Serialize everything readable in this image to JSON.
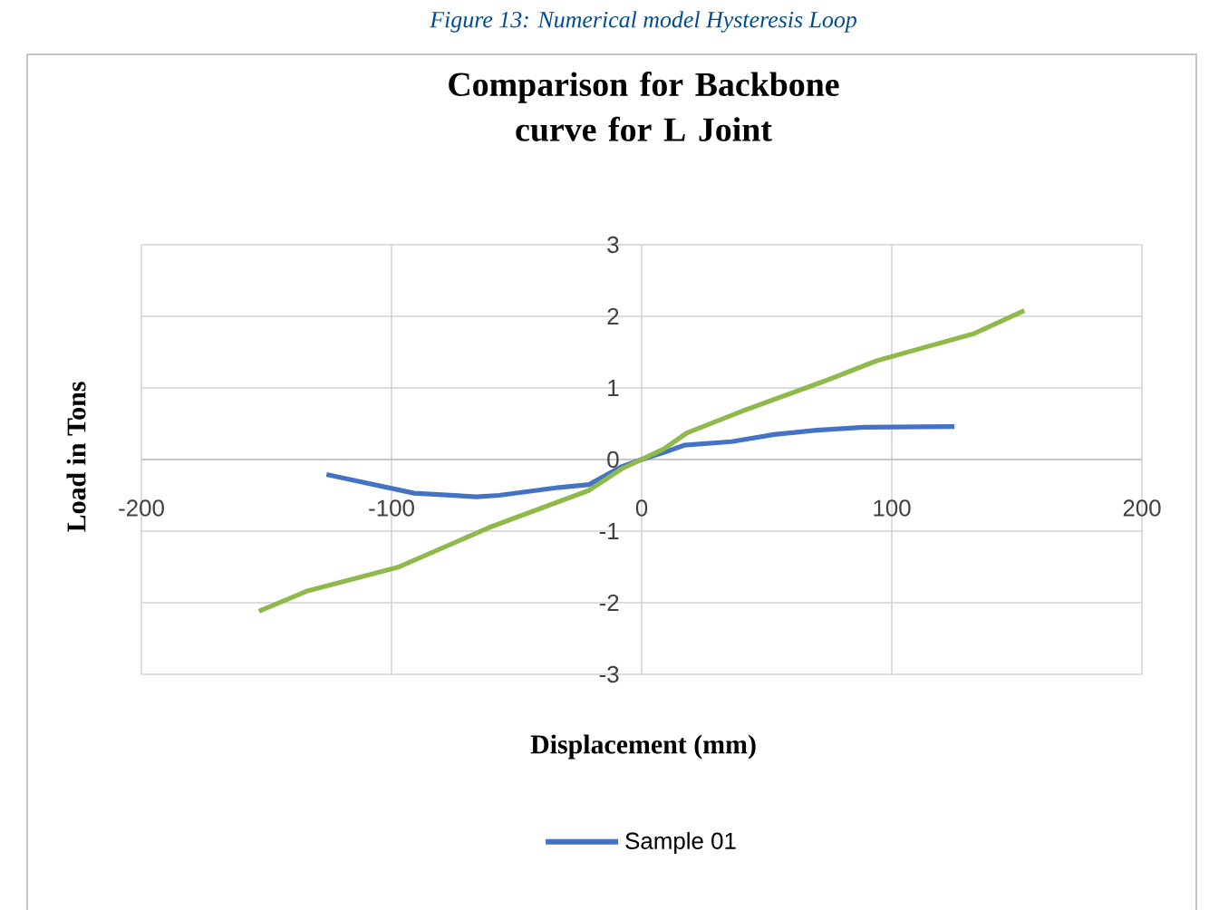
{
  "chart_data": {
    "type": "line",
    "title": "Comparison for Backbone curve for L Joint",
    "xlabel": "Displacement (mm)",
    "ylabel": "Load in Tons",
    "annotations": [
      "Figure 13: Numerical model Hysteresis Loop"
    ],
    "series": [
      {
        "name": "Sample 01",
        "color": "#4472c4",
        "x": [
          -126,
          -91,
          -66,
          -57,
          -33,
          -21,
          -8,
          0,
          9,
          17,
          36,
          53,
          70,
          89,
          125
        ],
        "values": [
          -0.21,
          -0.47,
          -0.52,
          -0.5,
          -0.39,
          -0.35,
          -0.1,
          0,
          0.1,
          0.2,
          0.25,
          0.35,
          0.41,
          0.45,
          0.46
        ]
      },
      {
        "color": "#8fb94b",
        "x": [
          -153,
          -134,
          -97,
          -61,
          -21,
          -8,
          0,
          9,
          18,
          42,
          75,
          94,
          133,
          153
        ],
        "values": [
          -2.12,
          -1.84,
          -1.5,
          -0.95,
          -0.43,
          -0.13,
          0,
          0.15,
          0.37,
          0.7,
          1.12,
          1.38,
          1.76,
          2.08
        ]
      }
    ],
    "xlim": [
      -200,
      200
    ],
    "ylim": [
      -3,
      3
    ],
    "xticks": [
      -200,
      -100,
      0,
      100,
      200
    ],
    "yticks": [
      -3,
      -2,
      -1,
      0,
      1,
      2,
      3
    ],
    "grid": true,
    "legend": "bottom",
    "line_style": "solid"
  }
}
